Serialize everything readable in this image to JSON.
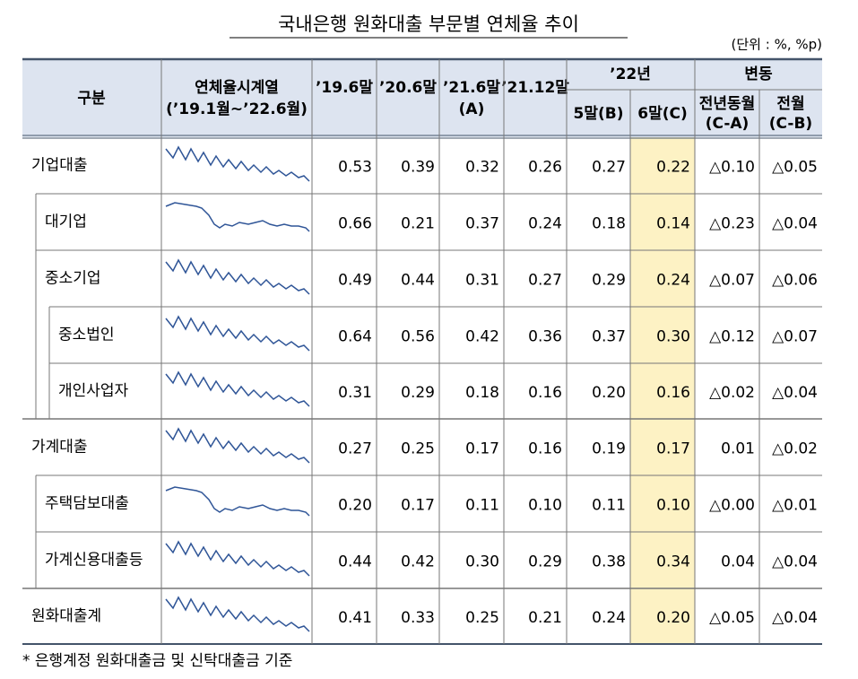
{
  "title": "국내은행 원화대출 부문별 연체율 추이",
  "unit": "(단위 : %, %p)",
  "header": {
    "category": "구분",
    "sparkline": [
      "연체율시계열",
      "(’19.1월~’22.6월)"
    ],
    "periods": [
      [
        "’19.6말"
      ],
      [
        "’20.6말"
      ],
      [
        "’21.6말",
        "(A)"
      ],
      [
        "’21.12말"
      ]
    ],
    "year_group": "’22년",
    "months": [
      "5말(B)",
      "6말(C)"
    ],
    "change_group": "변동",
    "changes": [
      [
        "전년동월",
        "(C-A)"
      ],
      [
        "전월",
        "(C-B)"
      ]
    ]
  },
  "rows": [
    {
      "label": "기업대출",
      "values": [
        "0.53",
        "0.39",
        "0.32",
        "0.26",
        "0.27",
        "0.22",
        "△0.10",
        "△0.05"
      ]
    },
    {
      "label": "대기업",
      "values": [
        "0.66",
        "0.21",
        "0.37",
        "0.24",
        "0.18",
        "0.14",
        "△0.23",
        "△0.04"
      ]
    },
    {
      "label": "중소기업",
      "values": [
        "0.49",
        "0.44",
        "0.31",
        "0.27",
        "0.29",
        "0.24",
        "△0.07",
        "△0.06"
      ]
    },
    {
      "label": "중소법인",
      "values": [
        "0.64",
        "0.56",
        "0.42",
        "0.36",
        "0.37",
        "0.30",
        "△0.12",
        "△0.07"
      ]
    },
    {
      "label": "개인사업자",
      "values": [
        "0.31",
        "0.29",
        "0.18",
        "0.16",
        "0.20",
        "0.16",
        "△0.02",
        "△0.04"
      ]
    },
    {
      "label": "가계대출",
      "values": [
        "0.27",
        "0.25",
        "0.17",
        "0.16",
        "0.19",
        "0.17",
        "0.01",
        "△0.02"
      ]
    },
    {
      "label": "주택담보대출",
      "values": [
        "0.20",
        "0.17",
        "0.11",
        "0.10",
        "0.11",
        "0.10",
        "△0.00",
        "△0.01"
      ]
    },
    {
      "label": "가계신용대출등",
      "values": [
        "0.44",
        "0.42",
        "0.30",
        "0.29",
        "0.38",
        "0.34",
        "0.04",
        "△0.04"
      ]
    },
    {
      "label": "원화대출계",
      "values": [
        "0.41",
        "0.33",
        "0.25",
        "0.21",
        "0.24",
        "0.20",
        "△0.05",
        "△0.04"
      ]
    }
  ],
  "footnote": "* 은행계정 원화대출금 및 신탁대출금 기준"
}
